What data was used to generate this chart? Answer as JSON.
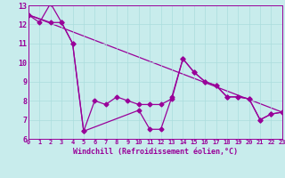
{
  "xlabel": "Windchill (Refroidissement éolien,°C)",
  "xlim": [
    0,
    23
  ],
  "ylim": [
    6,
    13
  ],
  "yticks": [
    6,
    7,
    8,
    9,
    10,
    11,
    12,
    13
  ],
  "xticks": [
    0,
    1,
    2,
    3,
    4,
    5,
    6,
    7,
    8,
    9,
    10,
    11,
    12,
    13,
    14,
    15,
    16,
    17,
    18,
    19,
    20,
    21,
    22,
    23
  ],
  "bg_color": "#c8ecec",
  "line_color": "#990099",
  "grid_color": "#aadddd",
  "line1_x": [
    0,
    1,
    2,
    3,
    4,
    5,
    10,
    11,
    12,
    13,
    14,
    15,
    16,
    17,
    18,
    19,
    20,
    21,
    22,
    23
  ],
  "line1_y": [
    12.5,
    12.1,
    13.1,
    12.1,
    11.0,
    6.4,
    7.5,
    6.5,
    6.5,
    8.2,
    10.2,
    9.5,
    9.0,
    8.8,
    8.2,
    8.2,
    8.1,
    7.0,
    7.3,
    7.4
  ],
  "line2_x": [
    0,
    2,
    3,
    4,
    5,
    6,
    7,
    8,
    9,
    10,
    11,
    12,
    13,
    14,
    15,
    16,
    17,
    18,
    19,
    20,
    21,
    22,
    23
  ],
  "line2_y": [
    12.5,
    12.1,
    12.1,
    11.0,
    6.4,
    8.0,
    7.8,
    8.2,
    8.0,
    7.8,
    7.8,
    7.8,
    8.1,
    10.2,
    9.5,
    9.0,
    8.8,
    8.2,
    8.2,
    8.1,
    7.0,
    7.3,
    7.4
  ],
  "line3_x": [
    0,
    23
  ],
  "line3_y": [
    12.5,
    7.4
  ],
  "marker": "D",
  "markersize": 2.5,
  "linewidth": 0.9,
  "tick_fontsize": 5.5,
  "xlabel_fontsize": 6.0
}
